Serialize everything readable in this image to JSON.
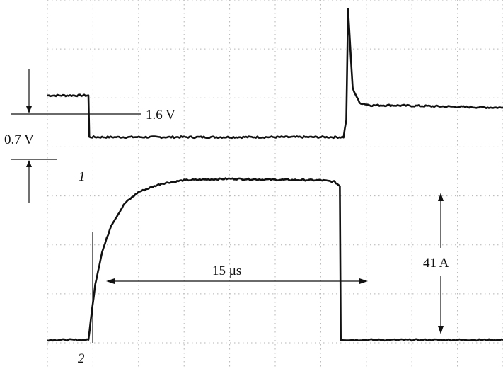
{
  "chart_data": {
    "type": "line",
    "title": "",
    "xlabel": "",
    "ylabel": "",
    "grid": true,
    "grid_divisions": {
      "x": 10,
      "y": 7
    },
    "series": [
      {
        "name": "1",
        "unit": "V",
        "x_div": [
          0,
          0.9,
          0.92,
          6.5,
          6.56,
          6.6,
          6.7,
          6.85,
          7.1,
          7.5,
          10
        ],
        "y_div": [
          5.05,
          5.05,
          4.2,
          4.2,
          4.55,
          6.8,
          5.2,
          4.9,
          4.85,
          4.85,
          4.8
        ],
        "level_before": 1.6,
        "step": 0.7
      },
      {
        "name": "2",
        "unit": "A",
        "x_div": [
          0,
          0.9,
          0.95,
          1.05,
          1.2,
          1.4,
          1.7,
          2.0,
          2.5,
          3.0,
          4.0,
          5.0,
          6.0,
          6.3,
          6.42,
          6.44,
          10
        ],
        "y_div": [
          0.06,
          0.06,
          0.45,
          1.2,
          1.85,
          2.4,
          2.85,
          3.08,
          3.25,
          3.32,
          3.35,
          3.33,
          3.32,
          3.29,
          3.2,
          0.06,
          0.06
        ],
        "amplitude": 41,
        "pulse_width": 15
      }
    ],
    "annotations": {
      "ch1_level": "1.6 V",
      "ch1_step": "0.7 V",
      "ch1_marker": "1",
      "ch2_marker": "2",
      "pulse_width": "15 μs",
      "ch2_amplitude": "41 A"
    }
  }
}
